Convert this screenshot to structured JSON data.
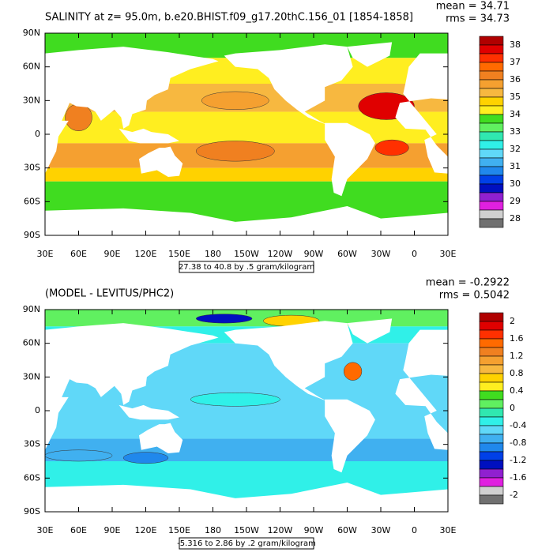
{
  "panels": [
    {
      "title": "SALINITY at z=  95.0m, b.e20.BHIST.f09_g17.20thC.156_01 [1854-1858]",
      "mean": "mean = 34.71",
      "rms": "rms = 34.73",
      "lat_labels": [
        "90N",
        "60N",
        "30N",
        "0",
        "30S",
        "60S",
        "90S"
      ],
      "lon_labels": [
        "30E",
        "60E",
        "90E",
        "120E",
        "150E",
        "180",
        "150W",
        "120W",
        "90W",
        "60W",
        "30W",
        "0",
        "30E"
      ],
      "colorbar": {
        "labels": [
          "38",
          "37",
          "36",
          "35",
          "34",
          "33",
          "32",
          "31",
          "30",
          "29",
          "28"
        ],
        "colors": [
          "#b00000",
          "#e00000",
          "#ff3000",
          "#ff6a00",
          "#f08020",
          "#f5a030",
          "#f7b840",
          "#ffd200",
          "#ffee20",
          "#40dc20",
          "#60f060",
          "#30e8b0",
          "#30f0e8",
          "#60d8f8",
          "#40b0f0",
          "#2088ec",
          "#0040e8",
          "#0010c0",
          "#9020d0",
          "#e020e0",
          "#d0d0d0",
          "#707070"
        ]
      },
      "caption": "27.38 to 40.8 by .5 gram/kilogram"
    },
    {
      "title": "(MODEL - LEVITUS/PHC2)",
      "mean": "mean = -0.2922",
      "rms": "rms = 0.5042",
      "lat_labels": [
        "90N",
        "60N",
        "30N",
        "0",
        "30S",
        "60S",
        "90S"
      ],
      "lon_labels": [
        "30E",
        "60E",
        "90E",
        "120E",
        "150E",
        "180",
        "150W",
        "120W",
        "90W",
        "60W",
        "30W",
        "0",
        "30E"
      ],
      "colorbar": {
        "labels": [
          "2",
          "1.6",
          "1.2",
          "0.8",
          "0.4",
          "0",
          "-0.4",
          "-0.8",
          "-1.2",
          "-1.6",
          "-2"
        ],
        "colors": [
          "#b00000",
          "#e00000",
          "#ff3000",
          "#ff6a00",
          "#f08020",
          "#f5a030",
          "#f7b840",
          "#ffd200",
          "#ffee20",
          "#40dc20",
          "#60f060",
          "#30e8b0",
          "#30f0e8",
          "#60d8f8",
          "#40b0f0",
          "#2088ec",
          "#0040e8",
          "#0010c0",
          "#9020d0",
          "#e020e0",
          "#d0d0d0",
          "#707070"
        ]
      },
      "caption": "-5.316 to 2.86 by .2 gram/kilogram"
    }
  ]
}
